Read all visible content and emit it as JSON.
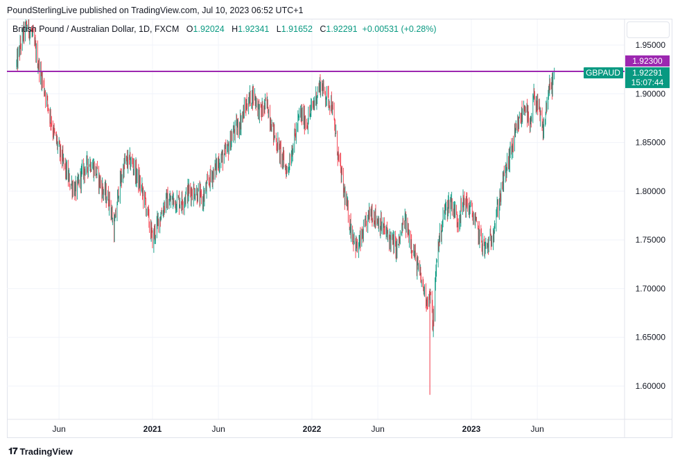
{
  "publisher_line": "PoundSterlingLive published on TradingView.com, Jul 10, 2023 06:52 UTC+1",
  "legend": {
    "symbol": "British Pound / Australian Dollar, 1D, FXCM",
    "o_label": "O",
    "o_value": "1.92024",
    "h_label": "H",
    "h_value": "1.92341",
    "l_label": "L",
    "l_value": "1.91652",
    "c_label": "C",
    "c_value": "1.92291",
    "change": "+0.00531 (+0.28%)"
  },
  "footer": {
    "brand": "TradingView"
  },
  "markers": {
    "level_value": "1.92300",
    "symbol_tag": "GBPAUD",
    "last_price": "1.92291",
    "countdown": "15:07:44"
  },
  "colors": {
    "up": "#089981",
    "down": "#f23645",
    "level_line": "#9c27b0",
    "price_tag": "#089981",
    "grid": "#f0f3fa"
  },
  "chart_data": {
    "type": "candlestick",
    "symbol": "GBPAUD",
    "interval": "1D",
    "ylim": [
      1.58,
      1.98
    ],
    "y_ticks": [
      "1.95000",
      "1.90000",
      "1.85000",
      "1.80000",
      "1.75000",
      "1.70000",
      "1.65000",
      "1.60000"
    ],
    "x_ticks": [
      "Jun",
      "2021",
      "Jun",
      "2022",
      "Jun",
      "2023",
      "Jun"
    ],
    "x_range": [
      "2020-02-25",
      "2023-11-15"
    ],
    "horizontal_level": 1.923,
    "last_close": 1.92291,
    "approx_close_path": [
      [
        "2020-02-25",
        1.93
      ],
      [
        "2020-03-10",
        1.96
      ],
      [
        "2020-03-20",
        1.97
      ],
      [
        "2020-04-01",
        1.96
      ],
      [
        "2020-04-15",
        1.93
      ],
      [
        "2020-05-01",
        1.9
      ],
      [
        "2020-05-20",
        1.86
      ],
      [
        "2020-06-10",
        1.83
      ],
      [
        "2020-06-25",
        1.81
      ],
      [
        "2020-07-10",
        1.8
      ],
      [
        "2020-07-25",
        1.82
      ],
      [
        "2020-08-10",
        1.83
      ],
      [
        "2020-08-25",
        1.82
      ],
      [
        "2020-09-10",
        1.8
      ],
      [
        "2020-09-25",
        1.79
      ],
      [
        "2020-10-05",
        1.76
      ],
      [
        "2020-10-15",
        1.8
      ],
      [
        "2020-10-30",
        1.83
      ],
      [
        "2020-11-15",
        1.83
      ],
      [
        "2020-12-01",
        1.81
      ],
      [
        "2020-12-15",
        1.79
      ],
      [
        "2021-01-01",
        1.75
      ],
      [
        "2021-01-15",
        1.77
      ],
      [
        "2021-02-01",
        1.79
      ],
      [
        "2021-02-20",
        1.79
      ],
      [
        "2021-03-10",
        1.79
      ],
      [
        "2021-03-25",
        1.8
      ],
      [
        "2021-04-10",
        1.8
      ],
      [
        "2021-04-25",
        1.79
      ],
      [
        "2021-05-10",
        1.81
      ],
      [
        "2021-06-01",
        1.83
      ],
      [
        "2021-06-20",
        1.84
      ],
      [
        "2021-07-05",
        1.86
      ],
      [
        "2021-07-20",
        1.87
      ],
      [
        "2021-08-05",
        1.89
      ],
      [
        "2021-08-20",
        1.9
      ],
      [
        "2021-09-05",
        1.88
      ],
      [
        "2021-09-20",
        1.89
      ],
      [
        "2021-10-05",
        1.86
      ],
      [
        "2021-10-20",
        1.84
      ],
      [
        "2021-11-05",
        1.82
      ],
      [
        "2021-11-20",
        1.85
      ],
      [
        "2021-12-05",
        1.88
      ],
      [
        "2021-12-20",
        1.87
      ],
      [
        "2022-01-05",
        1.89
      ],
      [
        "2022-01-20",
        1.91
      ],
      [
        "2022-02-01",
        1.9
      ],
      [
        "2022-02-15",
        1.89
      ],
      [
        "2022-03-01",
        1.84
      ],
      [
        "2022-03-15",
        1.8
      ],
      [
        "2022-04-01",
        1.76
      ],
      [
        "2022-04-15",
        1.74
      ],
      [
        "2022-05-01",
        1.76
      ],
      [
        "2022-05-15",
        1.78
      ],
      [
        "2022-06-01",
        1.77
      ],
      [
        "2022-06-15",
        1.76
      ],
      [
        "2022-07-01",
        1.75
      ],
      [
        "2022-07-15",
        1.74
      ],
      [
        "2022-08-01",
        1.77
      ],
      [
        "2022-08-15",
        1.75
      ],
      [
        "2022-09-01",
        1.72
      ],
      [
        "2022-09-20",
        1.69
      ],
      [
        "2022-10-01",
        1.69
      ],
      [
        "2022-10-05",
        1.66
      ],
      [
        "2022-10-15",
        1.74
      ],
      [
        "2022-11-01",
        1.78
      ],
      [
        "2022-11-15",
        1.79
      ],
      [
        "2022-12-01",
        1.77
      ],
      [
        "2022-12-15",
        1.79
      ],
      [
        "2023-01-01",
        1.78
      ],
      [
        "2023-01-15",
        1.76
      ],
      [
        "2023-02-01",
        1.74
      ],
      [
        "2023-02-15",
        1.75
      ],
      [
        "2023-03-01",
        1.78
      ],
      [
        "2023-03-15",
        1.81
      ],
      [
        "2023-04-01",
        1.84
      ],
      [
        "2023-04-20",
        1.87
      ],
      [
        "2023-05-05",
        1.89
      ],
      [
        "2023-05-15",
        1.86
      ],
      [
        "2023-05-25",
        1.9
      ],
      [
        "2023-06-05",
        1.88
      ],
      [
        "2023-06-15",
        1.86
      ],
      [
        "2023-06-25",
        1.9
      ],
      [
        "2023-07-05",
        1.91
      ],
      [
        "2023-07-10",
        1.92291
      ]
    ]
  }
}
